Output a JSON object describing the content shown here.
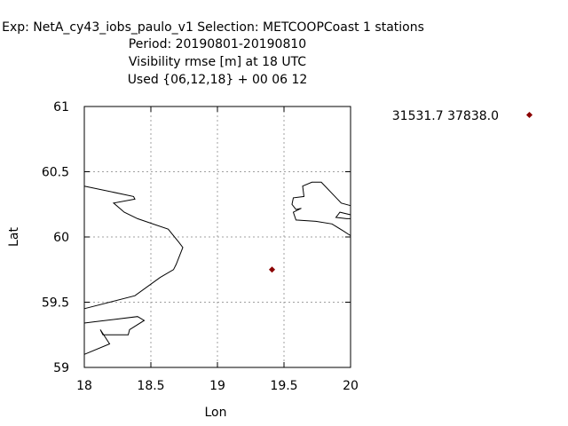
{
  "chart_data": {
    "type": "scatter",
    "title_lines": [
      "Exp: NetA_cy43_iobs_paulo_v1   Selection: METCOOPCoast      1 stations",
      "Period: 20190801-20190810",
      "Visibility rmse [m] at  18 UTC",
      "Used {06,12,18} + 00 06 12"
    ],
    "xlabel": "Lon",
    "ylabel": "Lat",
    "xlim": [
      18,
      20
    ],
    "ylim": [
      59,
      61
    ],
    "xticks": [
      "18",
      "18.5",
      "19",
      "19.5",
      "20"
    ],
    "yticks": [
      "59",
      "59.5",
      "60",
      "60.5",
      "61"
    ],
    "grid": true,
    "points": [
      {
        "x": 19.41,
        "y": 59.75,
        "color": "#8b0000"
      }
    ],
    "legend": {
      "placement": "top-right, outside plot",
      "label": "31531.7 37838.0",
      "color": "#8b0000"
    },
    "coastlines": [
      [
        [
          18.0,
          60.39
        ],
        [
          18.37,
          60.31
        ],
        [
          18.38,
          60.29
        ],
        [
          18.22,
          60.26
        ],
        [
          18.3,
          60.19
        ],
        [
          18.4,
          60.14
        ],
        [
          18.63,
          60.06
        ],
        [
          18.71,
          59.96
        ],
        [
          18.74,
          59.92
        ],
        [
          18.69,
          59.79
        ],
        [
          18.67,
          59.75
        ],
        [
          18.57,
          59.69
        ],
        [
          18.38,
          59.55
        ],
        [
          18.0,
          59.45
        ]
      ],
      [
        [
          18.0,
          59.34
        ],
        [
          18.08,
          59.35
        ],
        [
          18.4,
          59.39
        ],
        [
          18.45,
          59.36
        ],
        [
          18.34,
          59.29
        ],
        [
          18.33,
          59.25
        ],
        [
          18.14,
          59.25
        ],
        [
          18.12,
          59.29
        ],
        [
          18.19,
          59.18
        ],
        [
          18.0,
          59.1
        ]
      ],
      [
        [
          20.0,
          60.24
        ],
        [
          19.93,
          60.26
        ],
        [
          19.78,
          60.42
        ],
        [
          19.71,
          60.42
        ],
        [
          19.64,
          60.39
        ],
        [
          19.65,
          60.31
        ],
        [
          19.57,
          60.3
        ],
        [
          19.56,
          60.25
        ],
        [
          19.59,
          60.21
        ],
        [
          19.63,
          60.22
        ],
        [
          19.57,
          60.19
        ],
        [
          19.59,
          60.13
        ],
        [
          19.74,
          60.12
        ],
        [
          19.86,
          60.1
        ],
        [
          19.94,
          60.05
        ],
        [
          20.0,
          60.01
        ]
      ],
      [
        [
          20.0,
          60.17
        ],
        [
          19.92,
          60.19
        ],
        [
          19.89,
          60.15
        ],
        [
          19.97,
          60.14
        ],
        [
          20.0,
          60.14
        ]
      ]
    ]
  }
}
